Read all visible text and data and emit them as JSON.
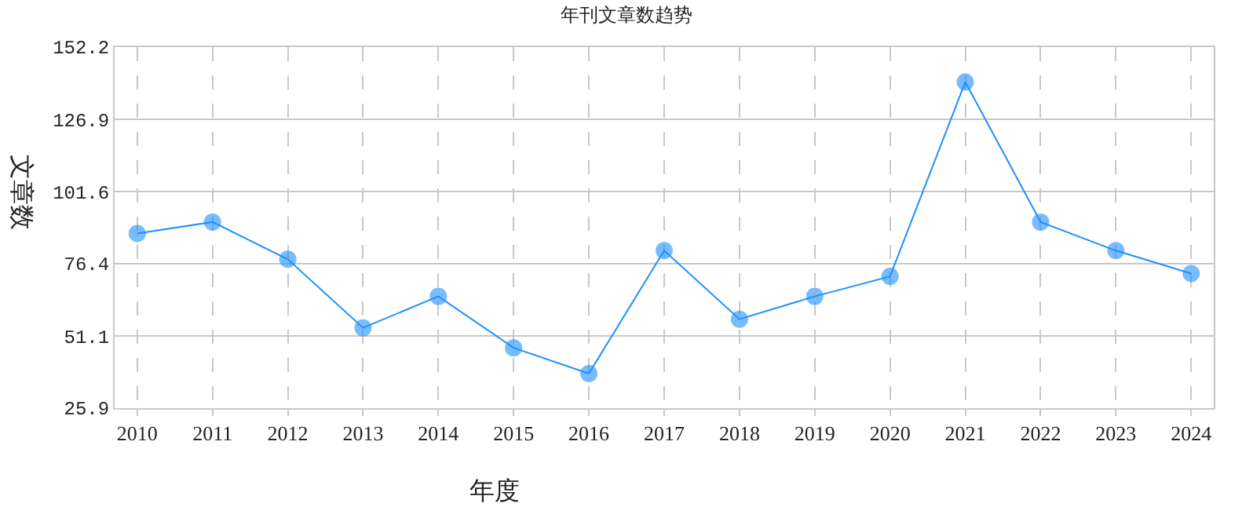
{
  "chart_data": {
    "type": "line",
    "title": "年刊文章数趋势",
    "xlabel": "年度",
    "ylabel": "文章数",
    "categories": [
      "2010",
      "2011",
      "2012",
      "2013",
      "2014",
      "2015",
      "2016",
      "2017",
      "2018",
      "2019",
      "2020",
      "2021",
      "2022",
      "2023",
      "2024"
    ],
    "series": [
      {
        "color": "#1e90ff",
        "values": [
          87,
          91,
          78,
          54,
          65,
          47,
          38,
          81,
          57,
          65,
          72,
          140,
          91,
          81,
          73
        ]
      }
    ],
    "ylim": [
      25.9,
      152.2
    ],
    "yticks": [
      25.9,
      51.1,
      76.4,
      101.6,
      126.9,
      152.2
    ],
    "grid": true,
    "marker": "circle",
    "line_style": "solid",
    "legend": false
  }
}
